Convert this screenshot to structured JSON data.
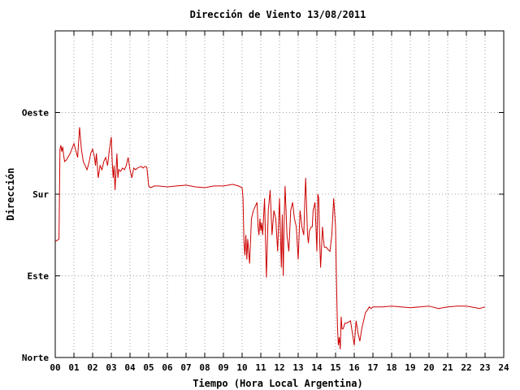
{
  "chart_data": {
    "type": "line",
    "title": "Dirección de Viento 13/08/2011",
    "xlabel": "Tiempo (Hora Local Argentina)",
    "ylabel": "Dirección",
    "xlim": [
      0,
      24
    ],
    "ylim": [
      0,
      4
    ],
    "x_ticks": [
      "00",
      "01",
      "02",
      "03",
      "04",
      "05",
      "06",
      "07",
      "08",
      "09",
      "10",
      "11",
      "12",
      "13",
      "14",
      "15",
      "16",
      "17",
      "18",
      "19",
      "20",
      "21",
      "22",
      "23",
      "24"
    ],
    "y_ticks": [
      {
        "value": 0,
        "label": "Norte"
      },
      {
        "value": 1,
        "label": "Este"
      },
      {
        "value": 2,
        "label": "Sur"
      },
      {
        "value": 3,
        "label": "Oeste"
      }
    ],
    "grid": true,
    "legend": false,
    "series": [
      {
        "color": "#cc0000",
        "x": [
          0.0,
          0.2,
          0.25,
          0.3,
          0.35,
          0.4,
          0.45,
          0.5,
          0.6,
          0.8,
          1.0,
          1.2,
          1.3,
          1.4,
          1.5,
          1.6,
          1.7,
          1.8,
          1.9,
          2.0,
          2.1,
          2.15,
          2.2,
          2.3,
          2.4,
          2.5,
          2.6,
          2.7,
          2.8,
          2.9,
          3.0,
          3.05,
          3.1,
          3.15,
          3.2,
          3.3,
          3.35,
          3.4,
          3.5,
          3.6,
          3.7,
          3.8,
          3.9,
          4.0,
          4.1,
          4.2,
          4.3,
          4.4,
          4.5,
          4.6,
          4.7,
          4.8,
          4.9,
          5.0,
          5.1,
          5.2,
          5.3,
          5.5,
          6.0,
          6.5,
          7.0,
          7.5,
          8.0,
          8.5,
          9.0,
          9.5,
          9.8,
          10.0,
          10.05,
          10.1,
          10.15,
          10.2,
          10.25,
          10.3,
          10.4,
          10.5,
          10.6,
          10.7,
          10.8,
          10.85,
          10.9,
          10.95,
          11.0,
          11.05,
          11.1,
          11.2,
          11.3,
          11.4,
          11.5,
          11.6,
          11.7,
          11.8,
          11.9,
          12.0,
          12.1,
          12.15,
          12.2,
          12.25,
          12.3,
          12.4,
          12.5,
          12.6,
          12.7,
          12.8,
          12.9,
          13.0,
          13.1,
          13.2,
          13.3,
          13.35,
          13.4,
          13.5,
          13.55,
          13.6,
          13.7,
          13.75,
          13.8,
          13.9,
          14.0,
          14.05,
          14.1,
          14.15,
          14.2,
          14.3,
          14.35,
          14.4,
          14.5,
          14.6,
          14.7,
          14.8,
          14.9,
          15.0,
          15.05,
          15.1,
          15.15,
          15.2,
          15.25,
          15.3,
          15.35,
          15.4,
          15.45,
          15.5,
          15.6,
          15.8,
          16.0,
          16.1,
          16.2,
          16.3,
          16.4,
          16.5,
          16.6,
          16.7,
          16.8,
          16.9,
          17.0,
          17.5,
          18.0,
          18.5,
          19.0,
          19.5,
          20.0,
          20.5,
          21.0,
          21.5,
          22.0,
          22.5,
          22.7,
          23.0
        ],
        "y": [
          1.42,
          1.45,
          2.55,
          2.6,
          2.52,
          2.58,
          2.48,
          2.4,
          2.42,
          2.5,
          2.62,
          2.45,
          2.82,
          2.55,
          2.4,
          2.35,
          2.3,
          2.38,
          2.5,
          2.55,
          2.45,
          2.35,
          2.5,
          2.2,
          2.35,
          2.3,
          2.4,
          2.45,
          2.35,
          2.55,
          2.7,
          2.4,
          2.2,
          2.35,
          2.05,
          2.5,
          2.2,
          2.3,
          2.28,
          2.32,
          2.3,
          2.35,
          2.45,
          2.3,
          2.2,
          2.32,
          2.3,
          2.32,
          2.33,
          2.34,
          2.32,
          2.34,
          2.33,
          2.1,
          2.08,
          2.09,
          2.1,
          2.1,
          2.09,
          2.1,
          2.11,
          2.09,
          2.08,
          2.1,
          2.1,
          2.12,
          2.1,
          2.08,
          1.95,
          1.4,
          1.25,
          1.5,
          1.2,
          1.45,
          1.15,
          1.7,
          1.8,
          1.85,
          1.9,
          1.6,
          1.5,
          1.7,
          1.55,
          1.65,
          1.5,
          1.95,
          0.98,
          1.8,
          2.05,
          1.5,
          1.8,
          1.7,
          1.3,
          1.95,
          1.1,
          1.75,
          1.0,
          1.7,
          2.1,
          1.5,
          1.3,
          1.8,
          1.9,
          1.7,
          1.6,
          1.2,
          1.8,
          1.6,
          1.5,
          1.9,
          2.2,
          1.5,
          1.4,
          1.55,
          1.6,
          1.6,
          1.8,
          1.9,
          1.3,
          2.0,
          1.95,
          1.45,
          1.1,
          1.6,
          1.45,
          1.35,
          1.35,
          1.32,
          1.3,
          1.5,
          1.95,
          1.6,
          0.95,
          0.4,
          0.15,
          0.25,
          0.1,
          0.5,
          0.35,
          0.35,
          0.38,
          0.42,
          0.42,
          0.45,
          0.15,
          0.45,
          0.3,
          0.2,
          0.35,
          0.45,
          0.55,
          0.58,
          0.62,
          0.6,
          0.62,
          0.62,
          0.63,
          0.62,
          0.61,
          0.62,
          0.63,
          0.6,
          0.62,
          0.63,
          0.63,
          0.61,
          0.6,
          0.62
        ]
      }
    ]
  }
}
